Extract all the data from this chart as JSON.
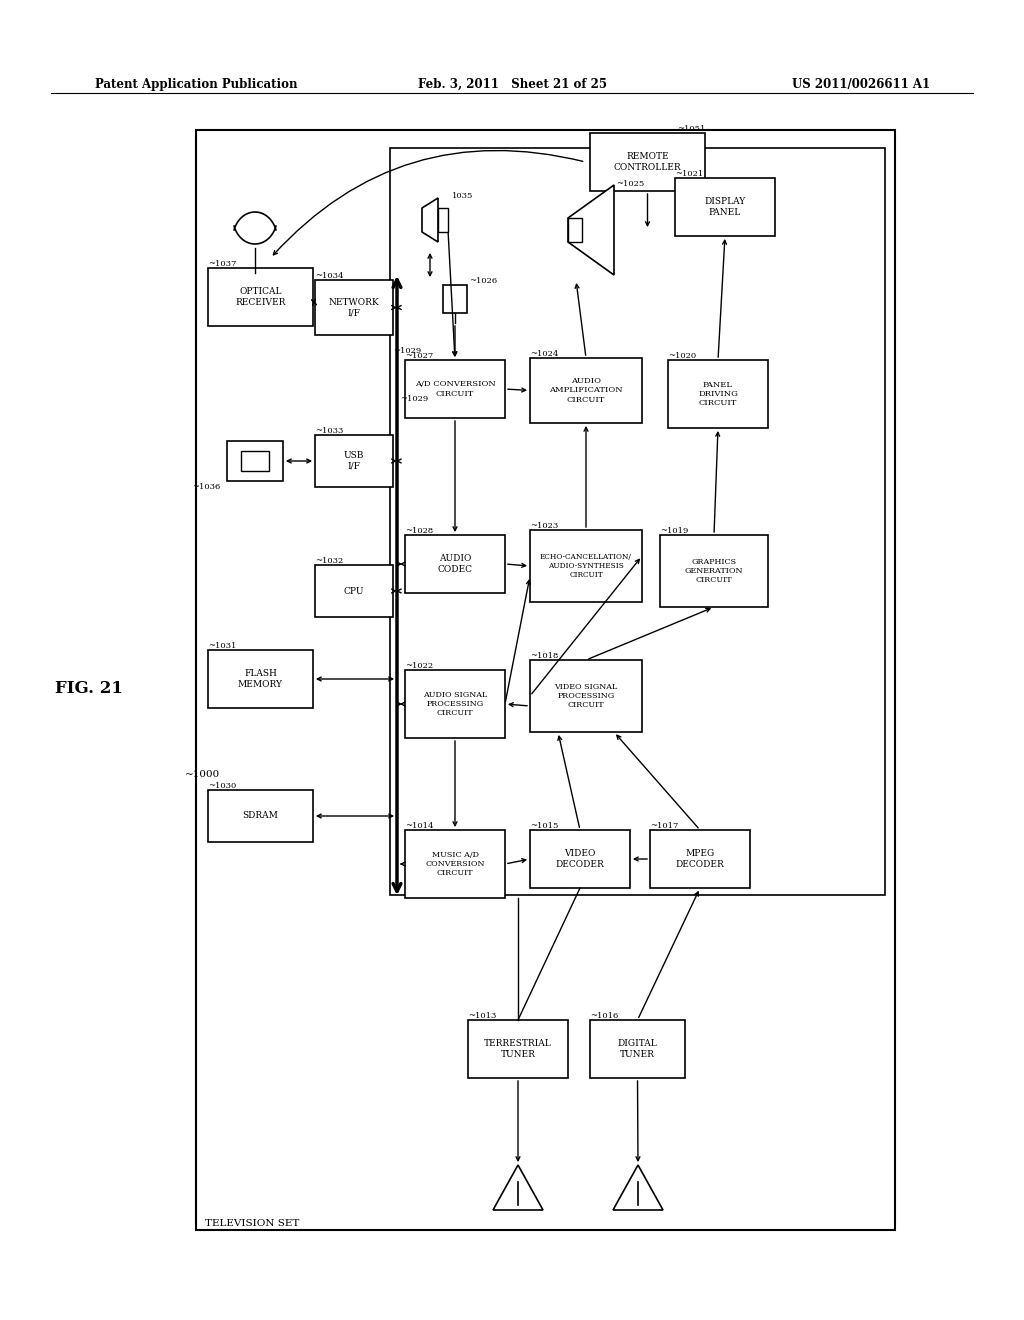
{
  "bg_color": "#ffffff",
  "header_left": "Patent Application Publication",
  "header_center": "Feb. 3, 2011   Sheet 21 of 25",
  "header_right": "US 2011/0026611 A1",
  "fig_label": "FIG. 21",
  "system_ref": "~1000"
}
